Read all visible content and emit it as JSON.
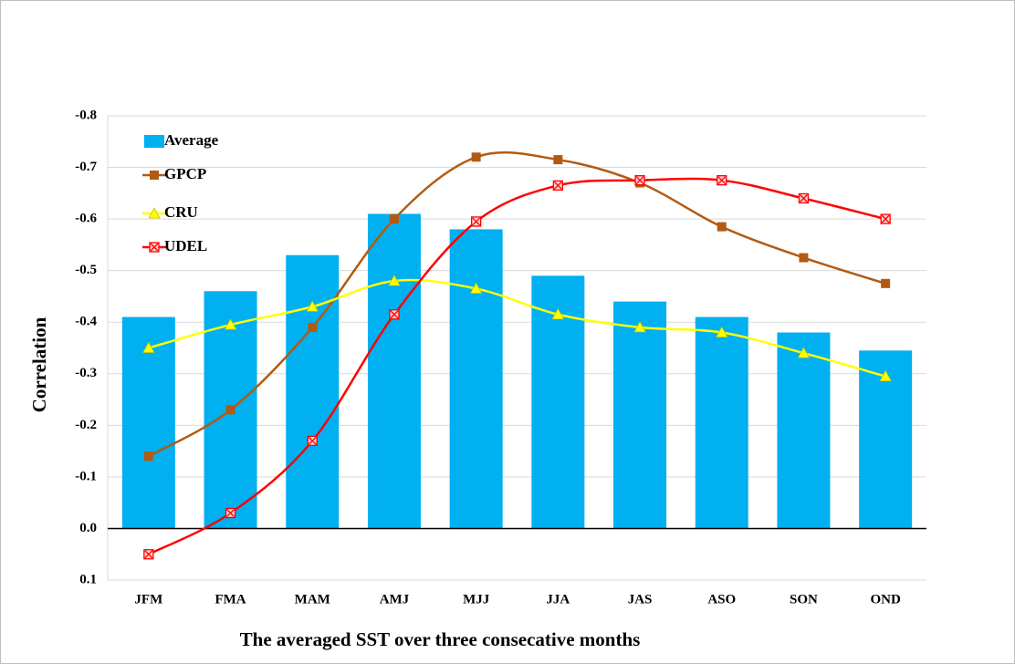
{
  "chart_data": {
    "type": "bar-line",
    "y_label": "Correlation",
    "x_label": "The averaged SST over three consecative months",
    "categories": [
      "JFM",
      "FMA",
      "MAM",
      "AMJ",
      "MJJ",
      "JJA",
      "JAS",
      "ASO",
      "SON",
      "OND"
    ],
    "series": [
      {
        "name": "Average",
        "kind": "bar",
        "color": "#00b0f0",
        "values": [
          -0.41,
          -0.46,
          -0.53,
          -0.61,
          -0.58,
          -0.49,
          -0.44,
          -0.41,
          -0.38,
          -0.345
        ]
      },
      {
        "name": "GPCP",
        "kind": "line",
        "marker": "square",
        "color": "#b35a12",
        "values": [
          -0.14,
          -0.23,
          -0.39,
          -0.6,
          -0.72,
          -0.715,
          -0.67,
          -0.585,
          -0.525,
          -0.475
        ]
      },
      {
        "name": "CRU",
        "kind": "line",
        "marker": "triangle",
        "color": "#ffff00",
        "values": [
          -0.35,
          -0.395,
          -0.43,
          -0.48,
          -0.465,
          -0.415,
          -0.39,
          -0.38,
          -0.34,
          -0.295
        ]
      },
      {
        "name": "UDEL",
        "kind": "line",
        "marker": "crossed-square",
        "color": "#ff0000",
        "values": [
          0.05,
          -0.03,
          -0.17,
          -0.415,
          -0.595,
          -0.665,
          -0.675,
          -0.675,
          -0.64,
          -0.6
        ]
      }
    ],
    "ylim": [
      0.1,
      -0.8
    ],
    "yticks": [
      0.1,
      {
        "value": 0,
        "label": "0.0"
      },
      -0.1,
      -0.2,
      -0.3,
      -0.4,
      -0.5,
      -0.6,
      -0.7,
      -0.8
    ],
    "grid": true,
    "smooth": true,
    "legend": "top-left"
  }
}
